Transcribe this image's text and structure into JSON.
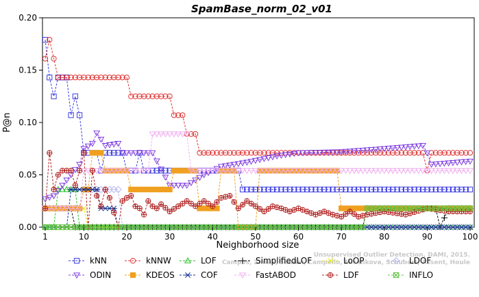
{
  "chart_data": {
    "type": "line",
    "title": "SpamBase_norm_02_v01",
    "xlabel": "Neighborhood size",
    "ylabel": "P@n",
    "xlim": [
      1,
      100
    ],
    "ylim": [
      0,
      0.2
    ],
    "xticks": [
      1,
      10,
      20,
      30,
      40,
      50,
      60,
      70,
      80,
      90,
      100
    ],
    "yticks": [
      0.0,
      0.05,
      0.1,
      0.15,
      0.2
    ],
    "ytick_labels": [
      "0.00",
      "0.05",
      "0.10",
      "0.15",
      "0.20"
    ],
    "grid": false,
    "legend_position": "bottom",
    "watermark": [
      "Unsupervised Outlier Detection, DAMI, 2015.",
      "Campos, Zimek, Sander, Campello, Micenkova, Schubert, Assent, Houle"
    ],
    "series": [
      {
        "name": "kNN",
        "color": "#3a3ae0",
        "marker": "square",
        "segments": [
          [
            1,
            0.179
          ],
          [
            2,
            0.143
          ],
          [
            3,
            0.125
          ],
          [
            4,
            0.143
          ],
          [
            6,
            0.143
          ],
          [
            7,
            0.107
          ],
          [
            8,
            0.125
          ],
          [
            9,
            0.107
          ],
          [
            10,
            0.071
          ],
          [
            12,
            0.071
          ],
          [
            13,
            0.071
          ],
          [
            14,
            0.054
          ],
          [
            15,
            0.071
          ],
          [
            19,
            0.071
          ],
          [
            20,
            0.054
          ],
          [
            22,
            0.054
          ],
          [
            23,
            0.071
          ],
          [
            24,
            0.054
          ],
          [
            46,
            0.054
          ],
          [
            47,
            0.036
          ],
          [
            100,
            0.036
          ]
        ]
      },
      {
        "name": "kNNW",
        "color": "#e03030",
        "marker": "circle",
        "segments": [
          [
            1,
            0.161
          ],
          [
            2,
            0.179
          ],
          [
            3,
            0.161
          ],
          [
            4,
            0.143
          ],
          [
            20,
            0.143
          ],
          [
            21,
            0.125
          ],
          [
            30,
            0.125
          ],
          [
            31,
            0.107
          ],
          [
            33,
            0.107
          ],
          [
            34,
            0.089
          ],
          [
            36,
            0.089
          ],
          [
            37,
            0.071
          ],
          [
            89,
            0.071
          ],
          [
            90,
            0.054
          ],
          [
            91,
            0.071
          ],
          [
            100,
            0.071
          ]
        ]
      },
      {
        "name": "LOF",
        "color": "#20c020",
        "marker": "triangle-up",
        "segments": [
          [
            1,
            0.0
          ],
          [
            3,
            0.0
          ],
          [
            4,
            0.036
          ],
          [
            8,
            0.036
          ],
          [
            9,
            0.0
          ],
          [
            100,
            0.0
          ]
        ]
      },
      {
        "name": "SimplifiedLOF",
        "color": "#000000",
        "marker": "plus",
        "segments": [
          [
            1,
            0.018
          ],
          [
            7,
            0.018
          ],
          [
            8,
            0.0
          ],
          [
            75,
            0.0
          ],
          [
            76,
            0.018
          ],
          [
            92,
            0.018
          ],
          [
            93,
            0.0
          ],
          [
            95,
            0.018
          ],
          [
            100,
            0.018
          ]
        ]
      },
      {
        "name": "LoOP",
        "color": "#e8e800",
        "marker": "x",
        "segments": [
          [
            1,
            0.018
          ],
          [
            10,
            0.018
          ],
          [
            11,
            0.0
          ],
          [
            100,
            0.0
          ]
        ]
      },
      {
        "name": "LDOF",
        "color": "#b8b8f0",
        "marker": "diamond",
        "segments": [
          [
            1,
            0.018
          ],
          [
            9,
            0.018
          ],
          [
            10,
            0.036
          ],
          [
            18,
            0.036
          ],
          [
            19,
            0.0
          ],
          [
            100,
            0.0
          ]
        ]
      },
      {
        "name": "ODIN",
        "color": "#8040e0",
        "marker": "triangle-down",
        "segments": [
          [
            1,
            0.027
          ],
          [
            3,
            0.03
          ],
          [
            5,
            0.04
          ],
          [
            7,
            0.05
          ],
          [
            9,
            0.06
          ],
          [
            10,
            0.075
          ],
          [
            12,
            0.08
          ],
          [
            13,
            0.09
          ],
          [
            15,
            0.078
          ],
          [
            18,
            0.08
          ],
          [
            19,
            0.071
          ],
          [
            26,
            0.071
          ],
          [
            30,
            0.04
          ],
          [
            34,
            0.04
          ],
          [
            38,
            0.05
          ],
          [
            42,
            0.058
          ],
          [
            48,
            0.062
          ],
          [
            55,
            0.068
          ],
          [
            60,
            0.071
          ],
          [
            70,
            0.072
          ],
          [
            80,
            0.075
          ],
          [
            89,
            0.078
          ],
          [
            90,
            0.071
          ],
          [
            91,
            0.06
          ],
          [
            100,
            0.063
          ]
        ]
      },
      {
        "name": "KDEOS",
        "color": "#f0a020",
        "marker": "square-filled",
        "segments": [
          [
            1,
            0.018
          ],
          [
            9,
            0.018
          ],
          [
            10,
            0.036
          ],
          [
            11,
            0.036
          ],
          [
            12,
            0.071
          ],
          [
            14,
            0.071
          ],
          [
            15,
            0.054
          ],
          [
            20,
            0.054
          ],
          [
            21,
            0.036
          ],
          [
            30,
            0.036
          ],
          [
            31,
            0.054
          ],
          [
            36,
            0.054
          ],
          [
            37,
            0.018
          ],
          [
            41,
            0.018
          ],
          [
            42,
            0.054
          ],
          [
            45,
            0.054
          ],
          [
            46,
            0.0
          ],
          [
            50,
            0.0
          ],
          [
            51,
            0.054
          ],
          [
            69,
            0.054
          ],
          [
            70,
            0.018
          ],
          [
            100,
            0.018
          ]
        ]
      },
      {
        "name": "COF",
        "color": "#103090",
        "marker": "asterisk",
        "segments": [
          [
            1,
            0.0
          ],
          [
            6,
            0.0
          ],
          [
            7,
            0.036
          ],
          [
            13,
            0.036
          ],
          [
            14,
            0.018
          ],
          [
            17,
            0.018
          ],
          [
            18,
            0.0
          ],
          [
            100,
            0.0
          ]
        ]
      },
      {
        "name": "FastABOD",
        "color": "#f0b0f0",
        "marker": "triangle-down",
        "segments": [
          [
            1,
            0.018
          ],
          [
            9,
            0.018
          ],
          [
            10,
            0.054
          ],
          [
            20,
            0.054
          ],
          [
            25,
            0.054
          ],
          [
            26,
            0.089
          ],
          [
            34,
            0.089
          ],
          [
            35,
            0.054
          ],
          [
            45,
            0.054
          ],
          [
            60,
            0.054
          ],
          [
            100,
            0.054
          ]
        ]
      },
      {
        "name": "LDF",
        "color": "#b02020",
        "marker": "circle-plus",
        "segments": [
          [
            1,
            0.018
          ],
          [
            2,
            0.071
          ],
          [
            3,
            0.036
          ],
          [
            4,
            0.05
          ],
          [
            5,
            0.054
          ],
          [
            6,
            0.054
          ],
          [
            7,
            0.054
          ],
          [
            8,
            0.04
          ],
          [
            9,
            0.054
          ],
          [
            10,
            0.071
          ],
          [
            11,
            0.0
          ],
          [
            12,
            0.054
          ],
          [
            13,
            0.03
          ],
          [
            14,
            0.02
          ],
          [
            15,
            0.036
          ],
          [
            16,
            0.028
          ],
          [
            18,
            0.0
          ],
          [
            19,
            0.025
          ],
          [
            20,
            0.028
          ],
          [
            21,
            0.03
          ],
          [
            22,
            0.02
          ],
          [
            23,
            0.018
          ],
          [
            24,
            0.012
          ],
          [
            25,
            0.025
          ],
          [
            26,
            0.02
          ],
          [
            27,
            0.018
          ],
          [
            28,
            0.022
          ],
          [
            30,
            0.015
          ],
          [
            32,
            0.02
          ],
          [
            34,
            0.025
          ],
          [
            36,
            0.02
          ],
          [
            38,
            0.025
          ],
          [
            40,
            0.02
          ],
          [
            42,
            0.028
          ],
          [
            44,
            0.03
          ],
          [
            46,
            0.018
          ],
          [
            48,
            0.025
          ],
          [
            50,
            0.02
          ],
          [
            52,
            0.015
          ],
          [
            54,
            0.02
          ],
          [
            56,
            0.018
          ],
          [
            58,
            0.015
          ],
          [
            60,
            0.018
          ],
          [
            62,
            0.015
          ],
          [
            64,
            0.012
          ],
          [
            66,
            0.015
          ],
          [
            68,
            0.012
          ],
          [
            70,
            0.01
          ],
          [
            72,
            0.015
          ],
          [
            74,
            0.01
          ],
          [
            76,
            0.012
          ],
          [
            80,
            0.015
          ],
          [
            85,
            0.012
          ],
          [
            90,
            0.018
          ],
          [
            95,
            0.015
          ],
          [
            100,
            0.015
          ]
        ]
      },
      {
        "name": "INFLO",
        "color": "#60c040",
        "marker": "square-x",
        "segments": [
          [
            1,
            0.0
          ],
          [
            75,
            0.0
          ],
          [
            76,
            0.018
          ],
          [
            100,
            0.018
          ]
        ]
      }
    ]
  }
}
